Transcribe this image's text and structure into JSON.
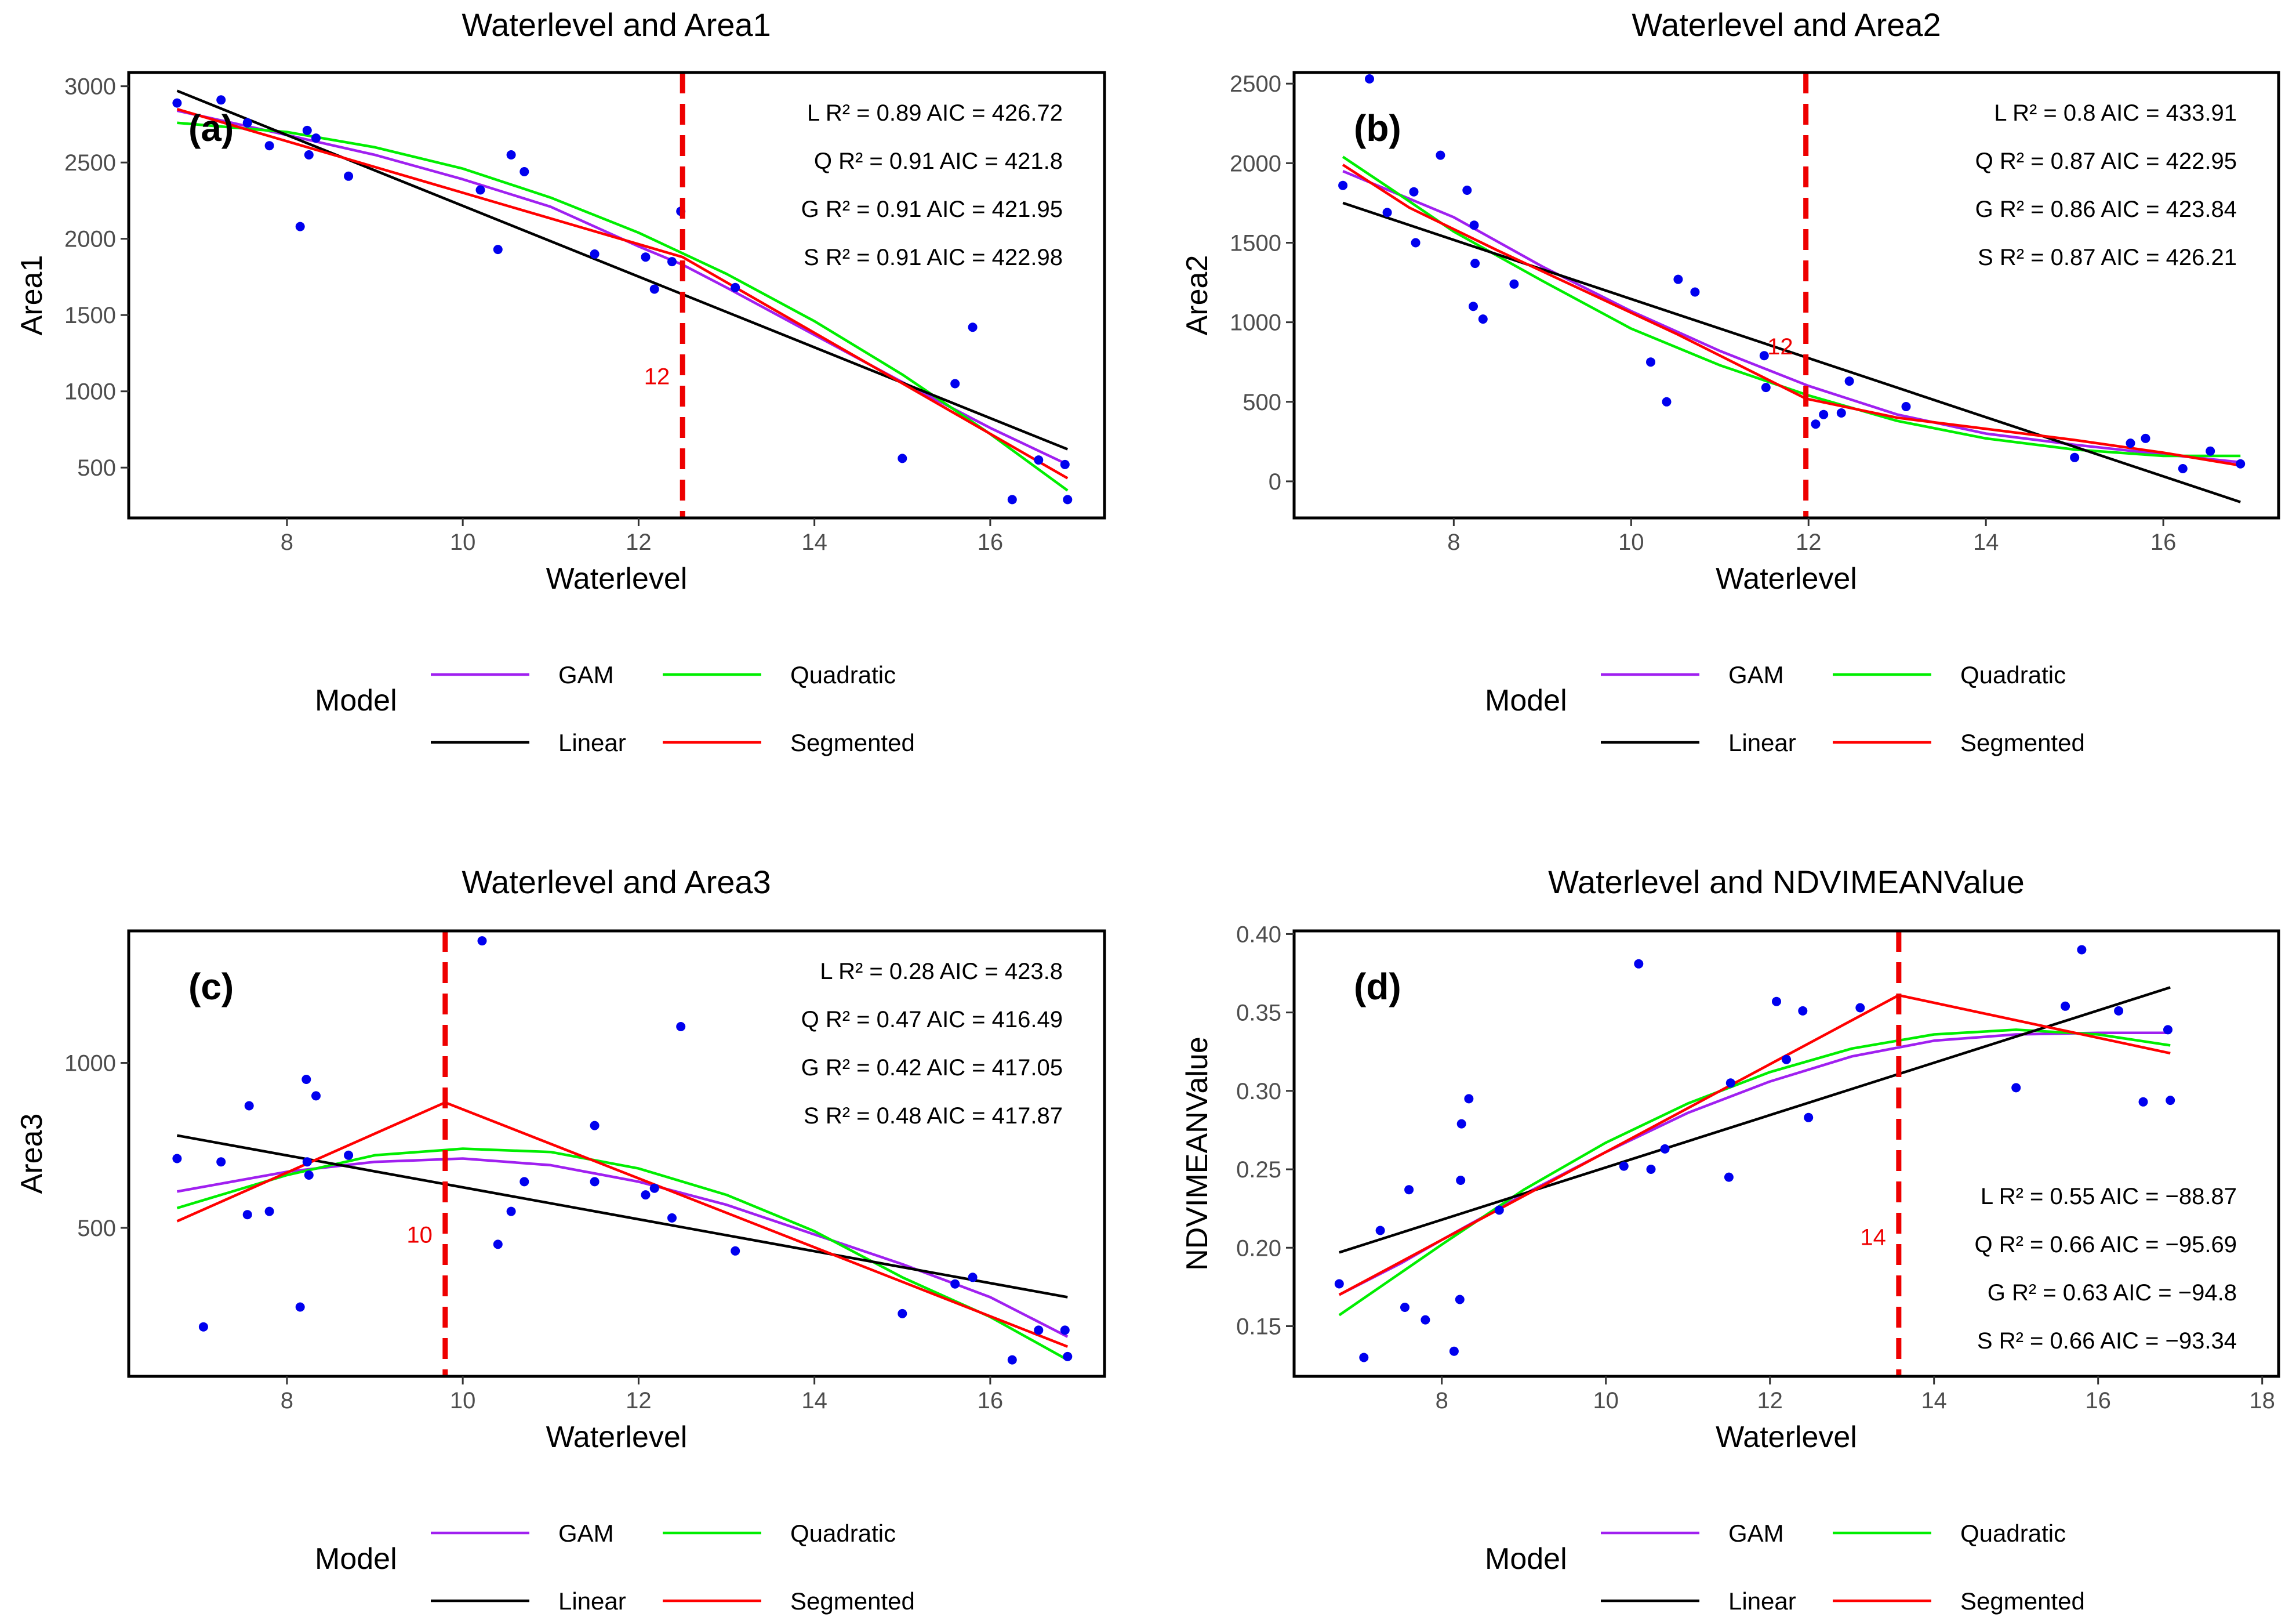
{
  "chart_data": [
    {
      "type": "scatter",
      "title": "Waterlevel and Area1",
      "panel_label": "(a)",
      "xlabel": "Waterlevel",
      "ylabel": "Area1",
      "xlim": [
        6.2,
        17.3
      ],
      "ylim": [
        170,
        3090
      ],
      "xticks": [
        8,
        10,
        12,
        14,
        16
      ],
      "xtick_labels": [
        "8",
        "10",
        "12",
        "14",
        "16"
      ],
      "yticks": [
        500,
        1000,
        1500,
        2000,
        2500,
        3000
      ],
      "ytick_labels": [
        "500",
        "1000",
        "1500",
        "2000",
        "2500",
        "3000"
      ],
      "breakpoint": 12.5,
      "breakpoint_label": "12",
      "breakpoint_label_y": 1100,
      "stats": [
        "L R² = 0.89 AIC = 426.72",
        "Q R² = 0.91 AIC = 421.8",
        "G R² = 0.91 AIC = 421.95",
        "S R² = 0.91 AIC = 422.98"
      ],
      "stats_anchor": "top-right",
      "points": {
        "x": [
          6.75,
          7.25,
          7.55,
          7.8,
          8.15,
          8.23,
          8.25,
          8.33,
          8.7,
          10.2,
          10.4,
          10.55,
          10.7,
          11.5,
          12.08,
          12.18,
          12.38,
          12.48,
          13.1,
          15.0,
          15.6,
          15.8,
          16.25,
          16.55,
          16.85,
          16.88
        ],
        "y": [
          2890,
          2910,
          2760,
          2610,
          2080,
          2710,
          2550,
          2660,
          2410,
          2320,
          1930,
          2550,
          2440,
          1900,
          1880,
          1670,
          1850,
          2180,
          1680,
          560,
          1050,
          1420,
          290,
          550,
          520,
          290
        ]
      },
      "series": [
        {
          "name": "GAM",
          "color": "#A020F0",
          "x": [
            6.75,
            8,
            9,
            10,
            11,
            12,
            12.5,
            13,
            14,
            15,
            16,
            16.88
          ],
          "y": [
            2840,
            2680,
            2550,
            2390,
            2210,
            1950,
            1830,
            1680,
            1370,
            1060,
            760,
            520
          ]
        },
        {
          "name": "Quadratic",
          "color": "#00EE00",
          "x": [
            6.75,
            8,
            9,
            10,
            11,
            12,
            13,
            14,
            15,
            16,
            16.88
          ],
          "y": [
            2760,
            2700,
            2600,
            2460,
            2270,
            2040,
            1770,
            1460,
            1110,
            720,
            350
          ]
        },
        {
          "name": "Linear",
          "color": "#000000",
          "x": [
            6.75,
            16.88
          ],
          "y": [
            2970,
            620
          ]
        },
        {
          "name": "Segmented",
          "color": "#FF0000",
          "x": [
            6.75,
            12.5,
            16.88
          ],
          "y": [
            2850,
            1880,
            430
          ]
        }
      ]
    },
    {
      "type": "scatter",
      "title": "Waterlevel and Area2",
      "panel_label": "(b)",
      "xlabel": "Waterlevel",
      "ylabel": "Area2",
      "xlim": [
        6.2,
        17.3
      ],
      "ylim": [
        -230,
        2570
      ],
      "xticks": [
        8,
        10,
        12,
        14,
        16
      ],
      "xtick_labels": [
        "8",
        "10",
        "12",
        "14",
        "16"
      ],
      "yticks": [
        0,
        500,
        1000,
        1500,
        2000,
        2500
      ],
      "ytick_labels": [
        "0",
        "500",
        "1000",
        "1500",
        "2000",
        "2500"
      ],
      "breakpoint": 11.97,
      "breakpoint_label": "12",
      "breakpoint_label_y": 850,
      "stats": [
        "L R² = 0.8 AIC = 433.91",
        "Q R² = 0.87 AIC = 422.95",
        "G R² = 0.86 AIC = 423.84",
        "S R² = 0.87 AIC = 426.21"
      ],
      "stats_anchor": "top-right",
      "points": {
        "x": [
          6.75,
          7.05,
          7.25,
          7.55,
          7.57,
          7.85,
          8.15,
          8.22,
          8.23,
          8.24,
          8.33,
          8.68,
          10.22,
          10.4,
          10.53,
          10.72,
          11.5,
          11.52,
          12.08,
          12.17,
          12.37,
          12.46,
          13.1,
          15.0,
          15.63,
          15.8,
          16.22,
          16.53,
          16.87
        ],
        "y": [
          1860,
          2530,
          1690,
          1820,
          1500,
          2050,
          1830,
          1100,
          1610,
          1370,
          1020,
          1240,
          750,
          500,
          1270,
          1190,
          790,
          590,
          360,
          420,
          430,
          630,
          470,
          150,
          240,
          270,
          80,
          190,
          110
        ]
      },
      "series": [
        {
          "name": "GAM",
          "color": "#A020F0",
          "x": [
            6.75,
            8,
            9,
            10,
            11,
            12,
            13,
            14,
            15,
            16,
            16.87
          ],
          "y": [
            1950,
            1660,
            1350,
            1070,
            820,
            600,
            420,
            300,
            230,
            170,
            120
          ]
        },
        {
          "name": "Quadratic",
          "color": "#00EE00",
          "x": [
            6.75,
            7.5,
            8,
            9,
            10,
            11,
            12,
            13,
            14,
            15,
            16,
            16.87
          ],
          "y": [
            2040,
            1760,
            1570,
            1260,
            960,
            730,
            540,
            380,
            270,
            200,
            160,
            160
          ]
        },
        {
          "name": "Linear",
          "color": "#000000",
          "x": [
            6.75,
            16.87
          ],
          "y": [
            1750,
            -130
          ]
        },
        {
          "name": "Segmented",
          "color": "#FF0000",
          "x": [
            6.75,
            7.5,
            8.5,
            9.5,
            10.5,
            11.97,
            13,
            14,
            15,
            16,
            16.87
          ],
          "y": [
            1990,
            1720,
            1450,
            1190,
            930,
            520,
            400,
            330,
            260,
            180,
            100
          ]
        }
      ]
    },
    {
      "type": "scatter",
      "title": "Waterlevel and Area3",
      "panel_label": "(c)",
      "xlabel": "Waterlevel",
      "ylabel": "Area3",
      "xlim": [
        6.2,
        17.3
      ],
      "ylim": [
        50,
        1400
      ],
      "xticks": [
        8,
        10,
        12,
        14,
        16
      ],
      "xtick_labels": [
        "8",
        "10",
        "12",
        "14",
        "16"
      ],
      "yticks": [
        500,
        1000
      ],
      "ytick_labels": [
        "500",
        "1000"
      ],
      "breakpoint": 9.8,
      "breakpoint_label": "10",
      "breakpoint_label_y": 480,
      "stats": [
        "L R² = 0.28 AIC = 423.8",
        "Q R² = 0.47 AIC = 416.49",
        "G R² = 0.42 AIC = 417.05",
        "S R² = 0.48 AIC = 417.87"
      ],
      "stats_anchor": "top-right",
      "points": {
        "x": [
          6.75,
          7.05,
          7.25,
          7.55,
          7.57,
          7.8,
          8.15,
          8.22,
          8.23,
          8.25,
          8.33,
          8.7,
          10.22,
          10.4,
          10.55,
          10.7,
          11.5,
          11.5,
          12.08,
          12.18,
          12.38,
          12.48,
          13.1,
          15.0,
          15.6,
          15.8,
          16.25,
          16.55,
          16.85,
          16.88
        ],
        "y": [
          710,
          200,
          700,
          540,
          870,
          550,
          260,
          950,
          700,
          660,
          900,
          720,
          1370,
          450,
          550,
          640,
          810,
          640,
          600,
          620,
          530,
          1110,
          430,
          240,
          330,
          350,
          100,
          190,
          190,
          110
        ]
      },
      "series": [
        {
          "name": "GAM",
          "color": "#A020F0",
          "x": [
            6.75,
            8,
            9,
            10,
            11,
            12,
            13,
            14,
            15,
            16,
            16.88
          ],
          "y": [
            610,
            670,
            700,
            710,
            690,
            640,
            570,
            480,
            390,
            290,
            170
          ]
        },
        {
          "name": "Quadratic",
          "color": "#00EE00",
          "x": [
            6.75,
            8,
            9,
            10,
            11,
            12,
            13,
            14,
            15,
            16,
            16.88
          ],
          "y": [
            560,
            660,
            720,
            740,
            730,
            680,
            600,
            490,
            350,
            230,
            100
          ]
        },
        {
          "name": "Linear",
          "color": "#000000",
          "x": [
            6.75,
            16.88
          ],
          "y": [
            780,
            290
          ]
        },
        {
          "name": "Segmented",
          "color": "#FF0000",
          "x": [
            6.75,
            9.8,
            16.88
          ],
          "y": [
            520,
            880,
            140
          ]
        }
      ]
    },
    {
      "type": "scatter",
      "title": "Waterlevel and NDVIMEANValue",
      "panel_label": "(d)",
      "xlabel": "Waterlevel",
      "ylabel": "NDVIMEANValue",
      "xlim": [
        6.2,
        18.2
      ],
      "ylim": [
        0.118,
        0.402
      ],
      "xticks": [
        8,
        10,
        12,
        14,
        16,
        18
      ],
      "xtick_labels": [
        "8",
        "10",
        "12",
        "14",
        "16",
        "18"
      ],
      "yticks": [
        0.15,
        0.2,
        0.25,
        0.3,
        0.35,
        0.4
      ],
      "ytick_labels": [
        "0.15",
        "0.20",
        "0.25",
        "0.30",
        "0.35",
        "0.40"
      ],
      "breakpoint": 13.57,
      "breakpoint_label": "14",
      "breakpoint_label_y": 0.207,
      "stats": [
        "L R² = 0.55 AIC = −88.87",
        "Q R² = 0.66 AIC = −95.69",
        "G R² = 0.63 AIC = −94.8",
        "S R² = 0.66 AIC = −93.34"
      ],
      "stats_anchor": "bottom-right",
      "points": {
        "x": [
          6.75,
          7.05,
          7.25,
          7.55,
          7.6,
          7.8,
          8.15,
          8.22,
          8.23,
          8.24,
          8.33,
          8.7,
          10.22,
          10.4,
          10.55,
          10.72,
          11.5,
          11.52,
          12.08,
          12.2,
          12.4,
          12.47,
          13.1,
          15.0,
          15.6,
          15.8,
          16.25,
          16.55,
          16.85,
          16.88
        ],
        "y": [
          0.177,
          0.13,
          0.211,
          0.162,
          0.237,
          0.154,
          0.134,
          0.167,
          0.243,
          0.279,
          0.295,
          0.224,
          0.252,
          0.381,
          0.25,
          0.263,
          0.245,
          0.305,
          0.357,
          0.32,
          0.351,
          0.283,
          0.353,
          0.302,
          0.354,
          0.39,
          0.351,
          0.293,
          0.339,
          0.294
        ]
      },
      "series": [
        {
          "name": "GAM",
          "color": "#A020F0",
          "x": [
            6.75,
            7.5,
            8,
            9,
            10,
            11,
            12,
            13,
            14,
            15,
            16,
            16.88
          ],
          "y": [
            0.17,
            0.19,
            0.205,
            0.234,
            0.261,
            0.286,
            0.306,
            0.322,
            0.332,
            0.336,
            0.337,
            0.337
          ]
        },
        {
          "name": "Quadratic",
          "color": "#00EE00",
          "x": [
            6.75,
            7.5,
            8,
            9,
            10,
            11,
            12,
            13,
            14,
            15,
            16,
            16.88
          ],
          "y": [
            0.157,
            0.184,
            0.202,
            0.237,
            0.267,
            0.292,
            0.312,
            0.327,
            0.336,
            0.339,
            0.336,
            0.329
          ]
        },
        {
          "name": "Linear",
          "color": "#000000",
          "x": [
            6.75,
            16.88
          ],
          "y": [
            0.197,
            0.366
          ]
        },
        {
          "name": "Segmented",
          "color": "#FF0000",
          "x": [
            6.75,
            13.57,
            16.88
          ],
          "y": [
            0.17,
            0.361,
            0.324
          ]
        }
      ]
    }
  ],
  "legend": {
    "title": "Model",
    "items": [
      {
        "name": "GAM",
        "color": "#A020F0"
      },
      {
        "name": "Quadratic",
        "color": "#00EE00"
      },
      {
        "name": "Linear",
        "color": "#000000"
      },
      {
        "name": "Segmented",
        "color": "#FF0000"
      }
    ]
  },
  "colors": {
    "points": "#0000EE",
    "breakpoint": "#EE0000",
    "axis": "#000000"
  }
}
